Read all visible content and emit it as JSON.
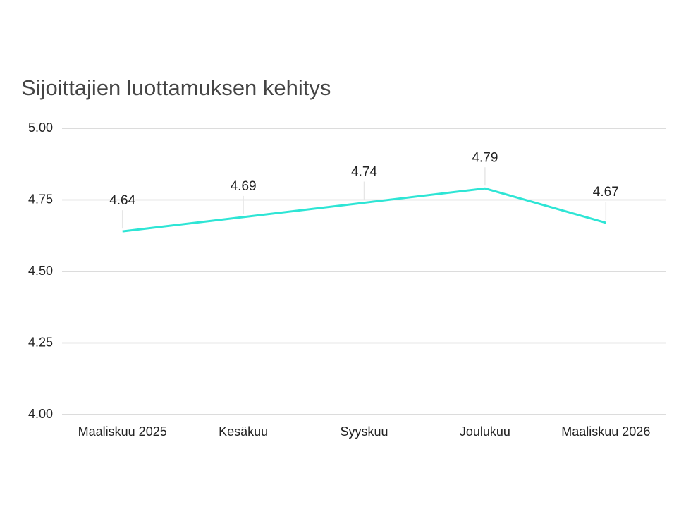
{
  "chart_data": {
    "type": "line",
    "title": "Sijoittajien luottamuksen kehitys",
    "categories": [
      "Maaliskuu 2025",
      "Kesäkuu",
      "Syyskuu",
      "Joulukuu",
      "Maaliskuu 2026"
    ],
    "values": [
      4.64,
      4.69,
      4.74,
      4.79,
      4.67
    ],
    "color": "#2ee5d5",
    "ylim": [
      4,
      5
    ],
    "yticks": [
      {
        "value": 4,
        "label": "4.00"
      },
      4.25,
      {
        "value": 4.5,
        "label": "4.50"
      },
      4.75,
      {
        "value": 5,
        "label": "5.00"
      }
    ],
    "grid": true
  }
}
